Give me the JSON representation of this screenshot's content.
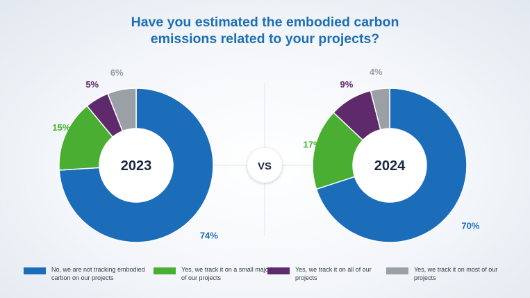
{
  "chart_data": {
    "type": "pie",
    "title": "Have you estimated the embodied carbon emissions related to your projects?",
    "title_lines": [
      "Have you estimated the embodied carbon",
      "emissions related to your projects?"
    ],
    "separator_label": "VS",
    "categories": [
      "No, we are not tracking embodied carbon on our projects",
      "Yes, we track it on a small majority of our projects",
      "Yes, we track it on all of our projects",
      "Yes, we track it on most of our projects"
    ],
    "colors": [
      "#1b6dba",
      "#4aae32",
      "#5f2a6b",
      "#9aa0a6"
    ],
    "charts": [
      {
        "center_label": "2023",
        "values": [
          74,
          15,
          5,
          6
        ],
        "value_labels": [
          "74%",
          "15%",
          "5%",
          "6%"
        ]
      },
      {
        "center_label": "2024",
        "values": [
          70,
          17,
          9,
          4
        ],
        "value_labels": [
          "70%",
          "17%",
          "9%",
          "4%"
        ]
      }
    ],
    "legend_position": "bottom"
  }
}
